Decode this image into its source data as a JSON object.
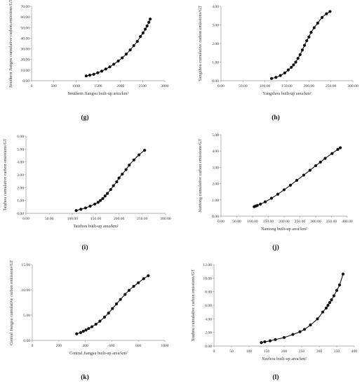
{
  "chart_data": [
    {
      "type": "line",
      "panel_label": "(g)",
      "xlabel": "Southern Jiangsu built-up area/km²",
      "ylabel": "Southern Jiangsu cumulative carbon emissions/GT",
      "xlim": [
        0,
        3000
      ],
      "ylim": [
        0,
        70
      ],
      "xticks": [
        "0",
        "500",
        "1000",
        "1500",
        "2000",
        "2500",
        "3000"
      ],
      "yticks": [
        "0.00",
        "10.00",
        "20.00",
        "30.00",
        "40.00",
        "50.00",
        "60.00",
        "70.00"
      ],
      "markers": "circle",
      "grid": false,
      "series": [
        {
          "x": [
            1230,
            1310,
            1400,
            1490,
            1580,
            1670,
            1760,
            1850,
            1950,
            2040,
            2130,
            2220,
            2300,
            2380,
            2450,
            2510,
            2560,
            2600,
            2640,
            2670
          ],
          "y": [
            4.5,
            5.2,
            6.0,
            7.5,
            9.0,
            11.0,
            13.0,
            15.5,
            18.5,
            21.5,
            25.0,
            29.0,
            33.0,
            37.0,
            41.5,
            45.0,
            48.5,
            51.5,
            55.0,
            58.0
          ]
        }
      ]
    },
    {
      "type": "line",
      "panel_label": "(h)",
      "xlabel": "Yangzhou built-up area/km²",
      "ylabel": "Yangzhou cumulative carbon emissions/GT",
      "xlim": [
        0,
        300
      ],
      "ylim": [
        0,
        4
      ],
      "xticks": [
        "0.00",
        "50.00",
        "100.00",
        "150.00",
        "200.00",
        "250.00",
        "300.00"
      ],
      "yticks": [
        "0.00",
        "1.00",
        "2.00",
        "3.00",
        "4.00"
      ],
      "markers": "circle",
      "grid": false,
      "series": [
        {
          "x": [
            115,
            125,
            135,
            145,
            153,
            160,
            165,
            170,
            175,
            180,
            185,
            190,
            195,
            200,
            205,
            212,
            220,
            230,
            240,
            248
          ],
          "y": [
            0.12,
            0.18,
            0.28,
            0.42,
            0.58,
            0.72,
            0.85,
            1.0,
            1.2,
            1.4,
            1.65,
            1.9,
            2.15,
            2.35,
            2.6,
            2.85,
            3.1,
            3.4,
            3.6,
            3.72
          ]
        }
      ]
    },
    {
      "type": "line",
      "panel_label": "(i)",
      "xlabel": "Taizhou built-up area/km²",
      "ylabel": "Taizhou cumulative carbon emissions/GT",
      "xlim": [
        0,
        300
      ],
      "ylim": [
        0,
        6
      ],
      "xticks": [
        "0.00",
        "50.00",
        "100.00",
        "150.00",
        "200.00",
        "250.00",
        "300.00"
      ],
      "yticks": [
        "0.00",
        "1.00",
        "2.00",
        "3.00",
        "4.00",
        "5.00",
        "6.00"
      ],
      "markers": "circle",
      "grid": false,
      "series": [
        {
          "x": [
            108,
            118,
            128,
            138,
            148,
            155,
            160,
            165,
            170,
            175,
            182,
            188,
            195,
            200,
            207,
            215,
            222,
            232,
            243,
            255
          ],
          "y": [
            0.22,
            0.32,
            0.42,
            0.56,
            0.72,
            0.86,
            1.0,
            1.15,
            1.35,
            1.55,
            1.85,
            2.15,
            2.45,
            2.75,
            3.05,
            3.4,
            3.75,
            4.15,
            4.55,
            4.9
          ]
        }
      ]
    },
    {
      "type": "line",
      "panel_label": "(j)",
      "xlabel": "Nantong built-up area/km²",
      "ylabel": "Nantong cumulative carbon emissions/GT",
      "xlim": [
        0,
        400
      ],
      "ylim": [
        0,
        5
      ],
      "xticks": [
        "0.00",
        "50.00",
        "100.00",
        "150.00",
        "200.00",
        "250.00",
        "300.00",
        "350.00",
        "400.00"
      ],
      "yticks": [
        "0.00",
        "1.00",
        "2.00",
        "3.00",
        "4.00",
        "5.00"
      ],
      "markers": "circle",
      "grid": false,
      "series": [
        {
          "x": [
            105,
            110,
            115,
            125,
            140,
            160,
            180,
            200,
            220,
            240,
            262,
            282,
            300,
            315,
            330,
            352,
            370,
            378
          ],
          "y": [
            0.58,
            0.62,
            0.66,
            0.74,
            0.88,
            1.1,
            1.35,
            1.62,
            1.9,
            2.2,
            2.52,
            2.82,
            3.1,
            3.32,
            3.55,
            3.85,
            4.1,
            4.2
          ]
        }
      ]
    },
    {
      "type": "line",
      "panel_label": "(k)",
      "xlabel": "Central Jiangsu built-up area/km²",
      "ylabel": "Central Jiangsu cumulative carbon emissions/GT",
      "xlim": [
        0,
        1000
      ],
      "ylim": [
        0,
        15
      ],
      "xticks": [
        "0",
        "200",
        "400",
        "600",
        "800",
        "1000"
      ],
      "yticks": [
        "0.00",
        "5.00",
        "10.00",
        "15.00"
      ],
      "markers": "circle",
      "grid": false,
      "series": [
        {
          "x": [
            335,
            365,
            385,
            405,
            425,
            450,
            480,
            510,
            545,
            575,
            605,
            635,
            665,
            700,
            730,
            765,
            800,
            840,
            875
          ],
          "y": [
            1.3,
            1.55,
            1.8,
            2.05,
            2.35,
            2.7,
            3.2,
            3.8,
            4.6,
            5.4,
            6.3,
            7.2,
            8.1,
            9.1,
            9.9,
            10.7,
            11.4,
            12.2,
            12.8
          ]
        }
      ]
    },
    {
      "type": "line",
      "panel_label": "(l)",
      "xlabel": "Xuzhou built-up area/km²",
      "ylabel": "Xuzhou cumulative carbon emissions/GT",
      "xlim": [
        0,
        400
      ],
      "ylim": [
        0,
        12
      ],
      "xticks": [
        "0",
        "50",
        "100",
        "150",
        "200",
        "250",
        "300",
        "350",
        "400"
      ],
      "yticks": [
        "0.00",
        "2.00",
        "4.00",
        "6.00",
        "8.00",
        "10.00",
        "12.00"
      ],
      "markers": "circle",
      "grid": false,
      "series": [
        {
          "x": [
            135,
            145,
            160,
            175,
            200,
            225,
            245,
            258,
            275,
            295,
            310,
            320,
            325,
            330,
            335,
            342,
            350,
            358,
            368
          ],
          "y": [
            0.5,
            0.62,
            0.76,
            0.95,
            1.25,
            1.7,
            2.1,
            2.45,
            3.1,
            4.0,
            5.0,
            5.6,
            6.0,
            6.4,
            6.8,
            7.4,
            8.2,
            9.0,
            10.6
          ]
        }
      ]
    }
  ]
}
